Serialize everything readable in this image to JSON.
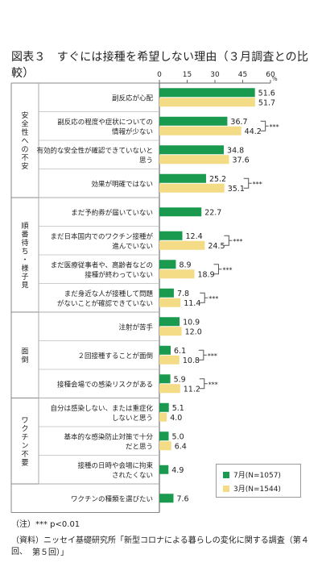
{
  "title": "図表３　すぐには接種を希望しない理由（３月調査との比較）",
  "colors": {
    "july": "#1a9a4e",
    "march": "#f4dc86",
    "bracket": "#555555"
  },
  "chart_data": {
    "type": "bar",
    "orientation": "horizontal",
    "x_ticks": [
      "0",
      "15",
      "30",
      "45",
      "60"
    ],
    "x_range": [
      0,
      60
    ],
    "unit": "%",
    "significance_marker": "***",
    "series": [
      {
        "name": "7月(N=1057)",
        "key": "july"
      },
      {
        "name": "3月(N=1544)",
        "key": "march"
      }
    ],
    "groups": [
      {
        "label": "安全性への不安",
        "cat_start": 0,
        "cat_end": 3
      },
      {
        "label": "順番待ち・様子見",
        "cat_start": 4,
        "cat_end": 7
      },
      {
        "label": "面倒",
        "cat_start": 8,
        "cat_end": 10
      },
      {
        "label": "ワクチン不要",
        "cat_start": 11,
        "cat_end": 13
      }
    ],
    "categories": [
      {
        "label": [
          "副反応が心配"
        ],
        "july": 51.6,
        "march": 51.7,
        "sig": false
      },
      {
        "label": [
          "副反応の程度や症状についての",
          "情報が少ない"
        ],
        "july": 36.7,
        "march": 44.2,
        "sig": true
      },
      {
        "label": [
          "有効的な安全性が確認できていないと",
          "思う"
        ],
        "july": 34.8,
        "march": 37.6,
        "sig": false
      },
      {
        "label": [
          "効果が明確ではない"
        ],
        "july": 25.2,
        "march": 35.1,
        "sig": true
      },
      {
        "label": [
          "まだ予約券が届いていない"
        ],
        "july": 22.7,
        "march": null,
        "sig": false
      },
      {
        "label": [
          "まだ日本国内でのワクチン接種が",
          "進んでいない"
        ],
        "july": 12.4,
        "march": 24.5,
        "sig": true
      },
      {
        "label": [
          "まだ医療従事者や、高齢者などの",
          "接種が終わっていない"
        ],
        "july": 8.9,
        "march": 18.9,
        "sig": true
      },
      {
        "label": [
          "まだ身近な人が接種して問題",
          "がないことが確認できていない"
        ],
        "july": 7.8,
        "march": 11.4,
        "sig": true
      },
      {
        "label": [
          "注射が苦手"
        ],
        "july": 10.9,
        "march": 12.0,
        "sig": false
      },
      {
        "label": [
          "２回接種することが面倒"
        ],
        "july": 6.1,
        "march": 10.8,
        "sig": true
      },
      {
        "label": [
          "接種会場での感染リスクがある"
        ],
        "july": 5.9,
        "march": 11.2,
        "sig": true
      },
      {
        "label": [
          "自分は感染しない、または重症化",
          "しないと思う"
        ],
        "july": 5.1,
        "march": 4.0,
        "sig": false
      },
      {
        "label": [
          "基本的な感染防止対策で十分",
          "だと思う"
        ],
        "july": 5.0,
        "march": 6.4,
        "sig": false
      },
      {
        "label": [
          "接種の日時や会場に拘束",
          "されたくない"
        ],
        "july": 4.9,
        "march": null,
        "sig": false
      },
      {
        "label": [
          "ワクチンの種類を選びたい"
        ],
        "july": 7.6,
        "march": null,
        "sig": false
      }
    ]
  },
  "notes": {
    "note": "（注）*** p<0.01",
    "source_line1": "（資料）ニッセイ基礎研究所「新型コロナによる暮らしの変化に関する調査（第４回、",
    "source_line2": "第５回）」"
  }
}
